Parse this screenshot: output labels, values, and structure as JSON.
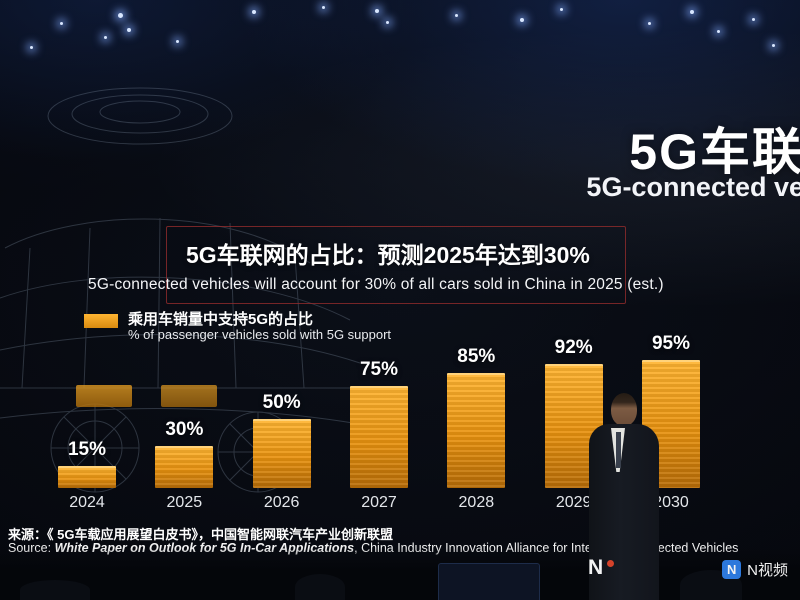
{
  "slide": {
    "title_cn": "5G车联",
    "title_en": "5G-connected ve",
    "panel_title": "5G车联网的占比：预测2025年达到30%",
    "panel_subtitle": "5G-connected vehicles will account for 30% of all cars sold in China in 2025 (est.)",
    "legend_cn": "乘用车销量中支持5G的占比",
    "legend_en": "% of passenger vehicles sold with 5G support"
  },
  "chart_data": {
    "type": "bar",
    "title": "5G车联网的占比：预测2025年达到30%",
    "subtitle": "5G-connected vehicles will account for 30% of all cars sold in China in 2025 (est.)",
    "categories": [
      "2024",
      "2025",
      "2026",
      "2027",
      "2028",
      "2029",
      "2030"
    ],
    "values": [
      15,
      30,
      50,
      75,
      85,
      92,
      95
    ],
    "unit": "%",
    "legend": [
      "乘用车销量中支持5G的占比",
      "% of passenger vehicles sold with 5G support"
    ],
    "xlabel": "",
    "ylabel": "",
    "ylim": [
      0,
      100
    ],
    "grid": false,
    "bar_color": "#f09a1a",
    "label_color": "#ffffff",
    "legend_position": "top-left"
  },
  "source": {
    "line1": "来源：《 5G车载应用展望白皮书》，中国智能网联汽车产业创新联盟",
    "line2_prefix": "Source: ",
    "line2_title": "White Paper on Outlook for 5G In-Car Applications",
    "line2_rest": ", China Industry Innovation Alliance for Intelligent Connected Vehicles"
  },
  "watermarks": {
    "left_brand": "N",
    "right_icon_letter": "N",
    "right_brand": "N视频"
  }
}
